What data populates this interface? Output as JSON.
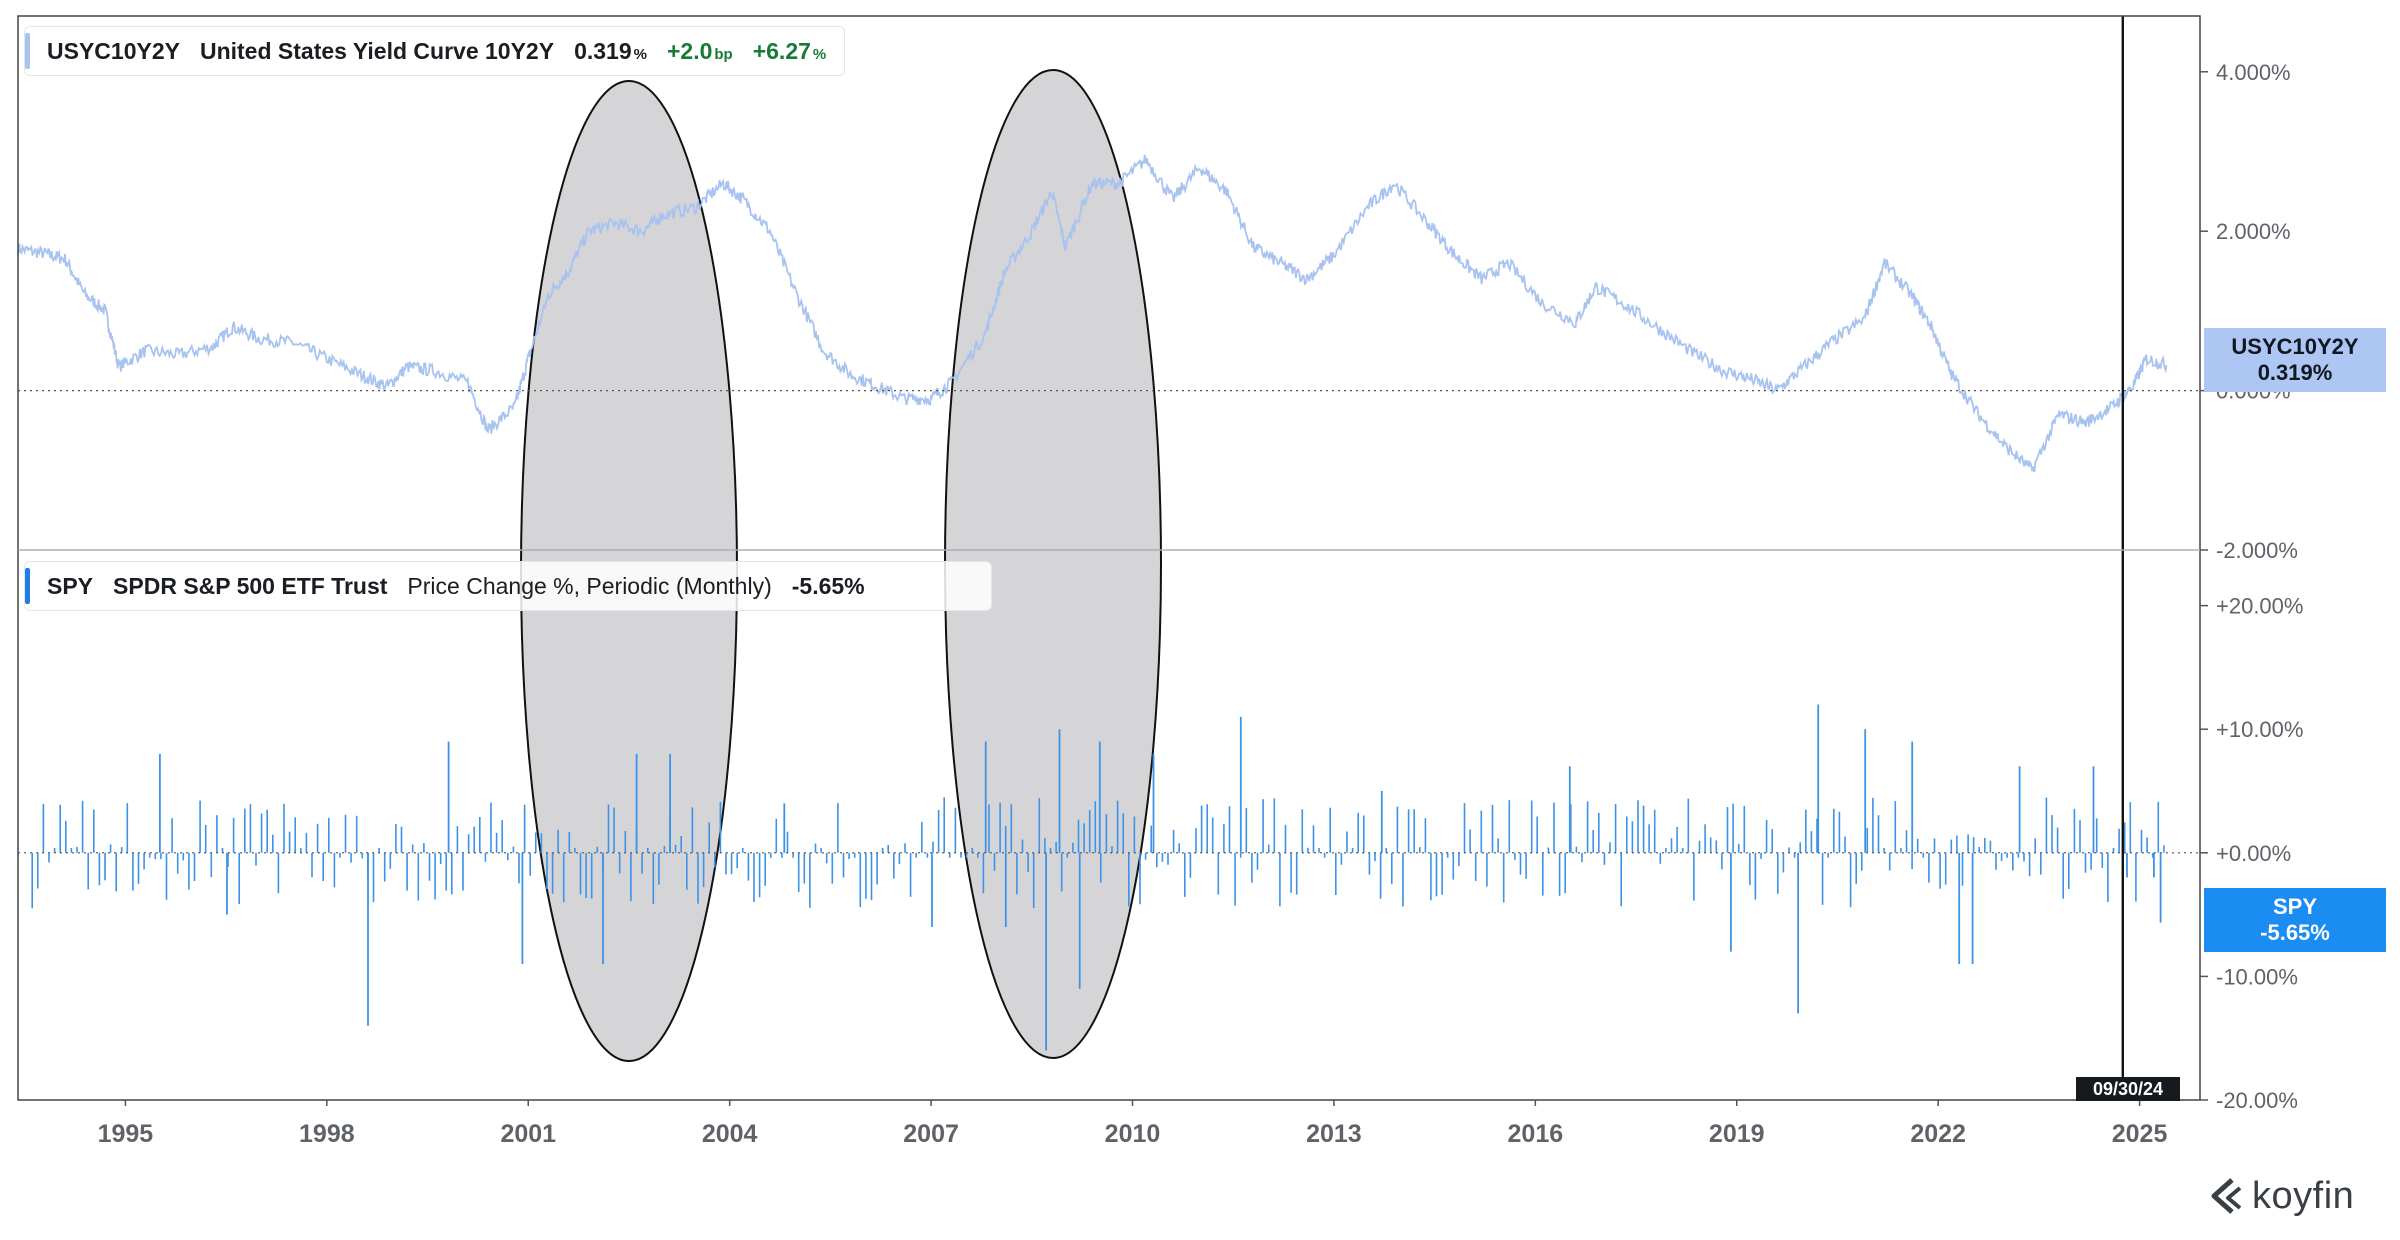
{
  "brand": {
    "name": "koyfin"
  },
  "colors": {
    "yield_line": "#a9c3f0",
    "spy_bars": "#3d93e8",
    "oval_fill": "#bfbfc2",
    "axis_text": "#5f6368"
  },
  "date_badge": "09/30/24",
  "x_axis": {
    "labels": [
      "1995",
      "1998",
      "2001",
      "2004",
      "2007",
      "2010",
      "2013",
      "2016",
      "2019",
      "2022",
      "2025"
    ],
    "label_years": [
      1995,
      1998,
      2001,
      2004,
      2007,
      2010,
      2013,
      2016,
      2019,
      2022,
      2025
    ],
    "range": [
      1993.4,
      2025.9
    ]
  },
  "yield_panel": {
    "ticker": "USYC10Y2Y",
    "name": "United States Yield Curve 10Y2Y",
    "value": "0.319",
    "value_unit": "%",
    "change_bp": "+2.0",
    "change_bp_unit": "bp",
    "change_pct": "+6.27",
    "change_pct_unit": "%",
    "tag_ticker": "USYC10Y2Y",
    "tag_value": "0.319%",
    "ticks": [
      {
        "v": 4,
        "label": "4.000%"
      },
      {
        "v": 2,
        "label": "2.000%"
      },
      {
        "v": 0,
        "label": "0.000%"
      },
      {
        "v": -2,
        "label": "-2.000%"
      }
    ],
    "ylim": [
      -2.0,
      4.7
    ]
  },
  "spy_panel": {
    "ticker": "SPY",
    "name": "SPDR S&P 500 ETF Trust",
    "study": "Price Change %, Periodic (Monthly)",
    "value": "-5.65%",
    "tag_ticker": "SPY",
    "tag_value": "-5.65%",
    "ticks": [
      {
        "v": 20,
        "label": "+20.00%"
      },
      {
        "v": 10,
        "label": "+10.00%"
      },
      {
        "v": 0,
        "label": "+0.00%"
      },
      {
        "v": -10,
        "label": "-10.00%"
      },
      {
        "v": -20,
        "label": "-20.00%"
      }
    ],
    "ylim": [
      -20.0,
      24.5
    ]
  },
  "chart_data": [
    {
      "type": "line",
      "series": [
        {
          "name": "USYC10Y2Y",
          "points": [
            [
              1993.4,
              1.78
            ],
            [
              1993.8,
              1.72
            ],
            [
              1994.1,
              1.65
            ],
            [
              1994.4,
              1.2
            ],
            [
              1994.7,
              1.0
            ],
            [
              1994.9,
              0.3
            ],
            [
              1995.3,
              0.5
            ],
            [
              1995.8,
              0.45
            ],
            [
              1996.3,
              0.55
            ],
            [
              1996.6,
              0.8
            ],
            [
              1997.0,
              0.65
            ],
            [
              1997.5,
              0.6
            ],
            [
              1998.0,
              0.4
            ],
            [
              1998.5,
              0.2
            ],
            [
              1998.9,
              0.05
            ],
            [
              1999.2,
              0.3
            ],
            [
              1999.6,
              0.25
            ],
            [
              2000.1,
              0.1
            ],
            [
              2000.4,
              -0.5
            ],
            [
              2000.8,
              -0.2
            ],
            [
              2001.0,
              0.4
            ],
            [
              2001.3,
              1.2
            ],
            [
              2001.6,
              1.5
            ],
            [
              2001.9,
              2.0
            ],
            [
              2002.3,
              2.1
            ],
            [
              2002.7,
              2.0
            ],
            [
              2003.0,
              2.2
            ],
            [
              2003.5,
              2.3
            ],
            [
              2003.9,
              2.6
            ],
            [
              2004.2,
              2.4
            ],
            [
              2004.6,
              2.0
            ],
            [
              2005.0,
              1.2
            ],
            [
              2005.4,
              0.5
            ],
            [
              2005.8,
              0.2
            ],
            [
              2006.2,
              0.05
            ],
            [
              2006.6,
              -0.1
            ],
            [
              2007.0,
              -0.1
            ],
            [
              2007.3,
              0.1
            ],
            [
              2007.8,
              0.7
            ],
            [
              2008.1,
              1.5
            ],
            [
              2008.5,
              2.0
            ],
            [
              2008.8,
              2.5
            ],
            [
              2009.0,
              1.8
            ],
            [
              2009.4,
              2.6
            ],
            [
              2009.8,
              2.6
            ],
            [
              2010.2,
              2.9
            ],
            [
              2010.6,
              2.4
            ],
            [
              2011.0,
              2.8
            ],
            [
              2011.4,
              2.5
            ],
            [
              2011.8,
              1.8
            ],
            [
              2012.2,
              1.6
            ],
            [
              2012.6,
              1.4
            ],
            [
              2013.0,
              1.7
            ],
            [
              2013.5,
              2.3
            ],
            [
              2013.9,
              2.6
            ],
            [
              2014.4,
              2.1
            ],
            [
              2014.8,
              1.7
            ],
            [
              2015.2,
              1.4
            ],
            [
              2015.6,
              1.6
            ],
            [
              2016.1,
              1.1
            ],
            [
              2016.6,
              0.85
            ],
            [
              2016.9,
              1.3
            ],
            [
              2017.3,
              1.1
            ],
            [
              2017.8,
              0.8
            ],
            [
              2018.3,
              0.5
            ],
            [
              2018.8,
              0.25
            ],
            [
              2019.2,
              0.15
            ],
            [
              2019.6,
              0.0
            ],
            [
              2020.0,
              0.3
            ],
            [
              2020.4,
              0.6
            ],
            [
              2020.9,
              0.9
            ],
            [
              2021.2,
              1.6
            ],
            [
              2021.6,
              1.2
            ],
            [
              2021.9,
              0.8
            ],
            [
              2022.2,
              0.2
            ],
            [
              2022.6,
              -0.3
            ],
            [
              2023.0,
              -0.7
            ],
            [
              2023.4,
              -1.0
            ],
            [
              2023.8,
              -0.3
            ],
            [
              2024.2,
              -0.4
            ],
            [
              2024.6,
              -0.2
            ],
            [
              2024.9,
              0.05
            ],
            [
              2025.1,
              0.4
            ],
            [
              2025.4,
              0.32
            ]
          ]
        }
      ],
      "ylim": [
        -2.0,
        4.7
      ],
      "ylabel": "",
      "grid": false
    },
    {
      "type": "bar",
      "series": [
        {
          "name": "SPY",
          "x": [
            1995.5,
            1996.5,
            1998.6,
            1999.8,
            2000.9,
            2002.1,
            2002.6,
            2003.1,
            2004.8,
            2007.0,
            2007.8,
            2008.1,
            2008.7,
            2008.9,
            2009.2,
            2009.5,
            2010.3,
            2011.6,
            2013.7,
            2016.5,
            2018.9,
            2019.9,
            2020.2,
            2020.9,
            2021.6,
            2022.3,
            2022.5,
            2023.2,
            2024.3,
            2024.8,
            2025.2,
            2025.3
          ],
          "values": [
            8,
            -5,
            -14,
            9,
            -9,
            -9,
            8,
            8,
            4,
            -6,
            9,
            -6,
            -16,
            10,
            -11,
            9,
            8,
            11,
            5,
            7,
            -8,
            -13,
            12,
            10,
            9,
            -9,
            -9,
            7,
            7,
            -2,
            -2,
            -5.65
          ]
        }
      ],
      "ylim": [
        -20.0,
        24.5
      ],
      "ylabel": "",
      "grid": false
    }
  ]
}
